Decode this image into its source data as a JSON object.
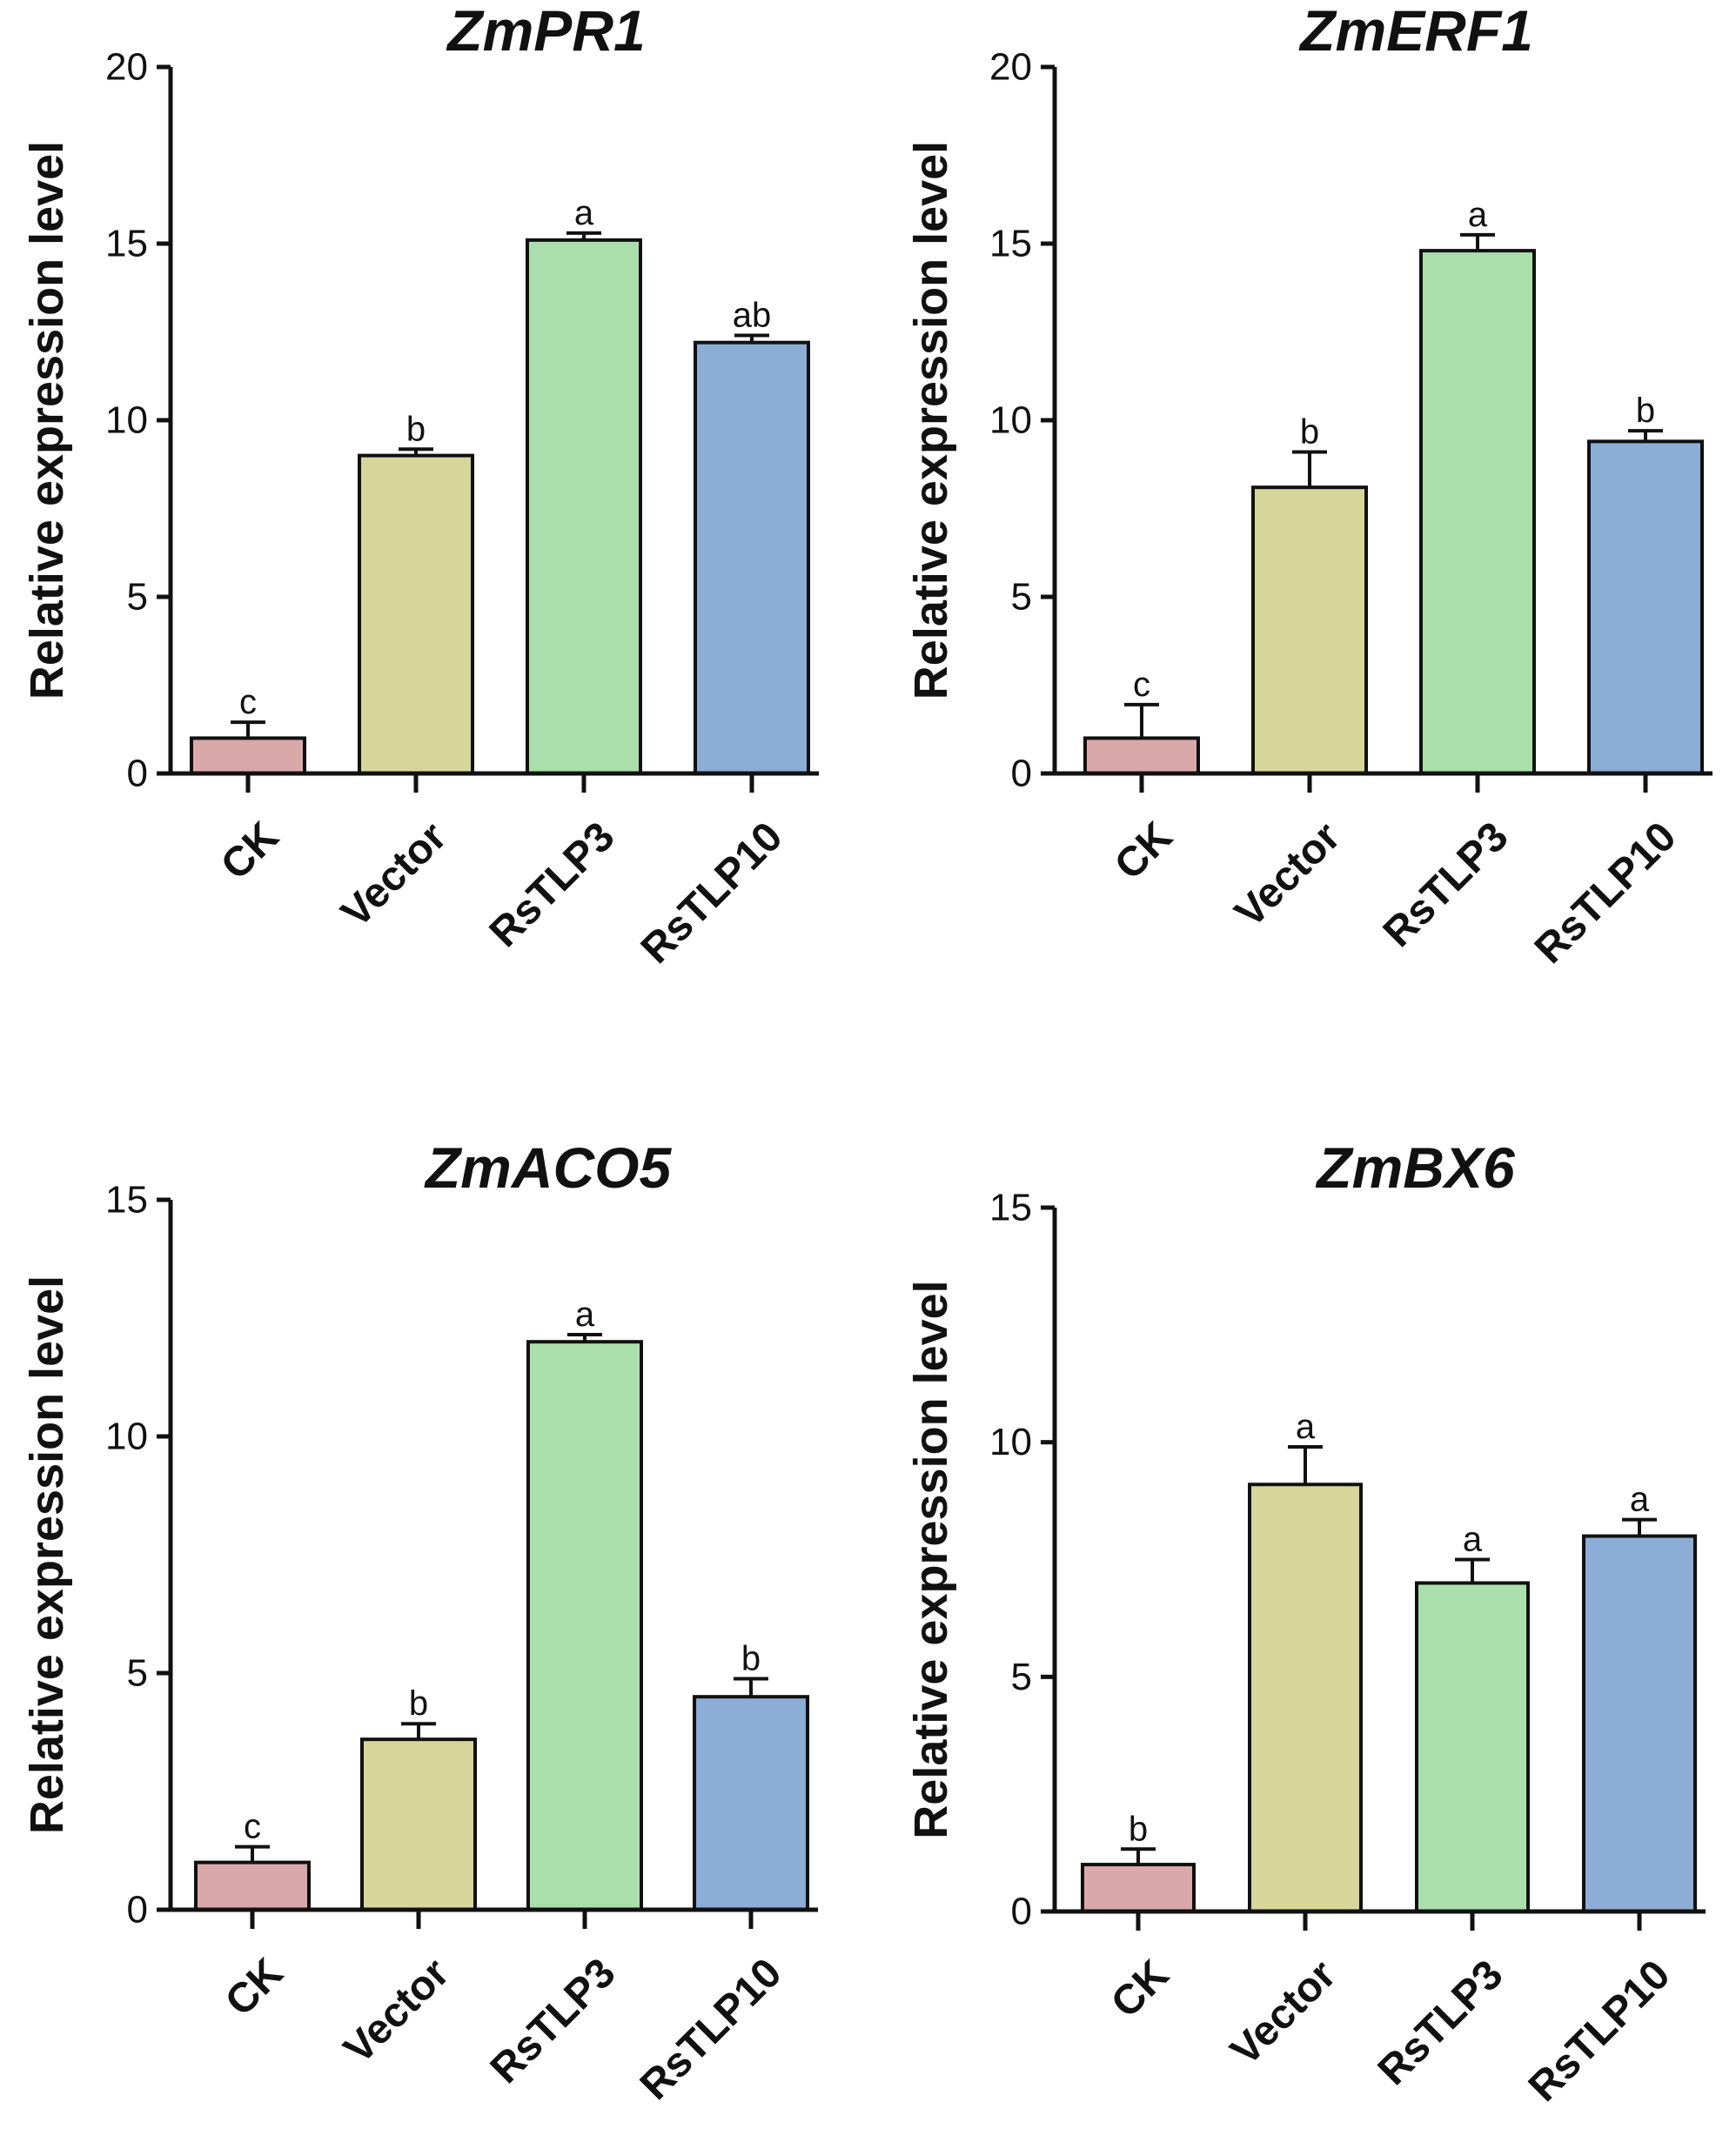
{
  "chart_data": [
    {
      "type": "bar",
      "title": "ZmPR1",
      "ylabel": "Relative expression level",
      "xlabel": "",
      "ylim": [
        0,
        20
      ],
      "yticks": [
        0,
        5,
        10,
        15,
        20
      ],
      "categories": [
        "CK",
        "Vector",
        "RsTLP3",
        "RsTLP10"
      ],
      "values": [
        1.0,
        9.0,
        15.1,
        12.2
      ],
      "errors": [
        0.45,
        0.18,
        0.2,
        0.2
      ],
      "significance": [
        "c",
        "b",
        "a",
        "ab"
      ],
      "colors": [
        "#d9a9a9",
        "#d6d69a",
        "#aadfac",
        "#8badd6"
      ]
    },
    {
      "type": "bar",
      "title": "ZmERF1",
      "ylabel": "Relative expression level",
      "xlabel": "",
      "ylim": [
        0,
        20
      ],
      "yticks": [
        0,
        5,
        10,
        15,
        20
      ],
      "categories": [
        "CK",
        "Vector",
        "RsTLP3",
        "RsTLP10"
      ],
      "values": [
        1.0,
        8.1,
        14.8,
        9.4
      ],
      "errors": [
        0.95,
        1.0,
        0.45,
        0.3
      ],
      "significance": [
        "c",
        "b",
        "a",
        "b"
      ],
      "colors": [
        "#d9a9a9",
        "#d6d69a",
        "#aadfac",
        "#8badd6"
      ]
    },
    {
      "type": "bar",
      "title": "ZmACO5",
      "ylabel": "Relative expression level",
      "xlabel": "",
      "ylim": [
        0,
        15
      ],
      "yticks": [
        0,
        5,
        10,
        15
      ],
      "categories": [
        "CK",
        "Vector",
        "RsTLP3",
        "RsTLP10"
      ],
      "values": [
        1.0,
        3.6,
        12.0,
        4.5
      ],
      "errors": [
        0.33,
        0.33,
        0.15,
        0.38
      ],
      "significance": [
        "c",
        "b",
        "a",
        "b"
      ],
      "colors": [
        "#d9a9a9",
        "#d6d69a",
        "#aadfac",
        "#8badd6"
      ]
    },
    {
      "type": "bar",
      "title": "ZmBX6",
      "ylabel": "Relative expression level",
      "xlabel": "",
      "ylim": [
        0,
        15
      ],
      "yticks": [
        0,
        5,
        10,
        15
      ],
      "categories": [
        "CK",
        "Vector",
        "RsTLP3",
        "RsTLP10"
      ],
      "values": [
        1.0,
        9.1,
        7.0,
        8.0
      ],
      "errors": [
        0.33,
        0.8,
        0.5,
        0.35
      ],
      "significance": [
        "b",
        "a",
        "a",
        "a"
      ],
      "colors": [
        "#d9a9a9",
        "#d6d69a",
        "#aadfac",
        "#8badd6"
      ]
    }
  ]
}
